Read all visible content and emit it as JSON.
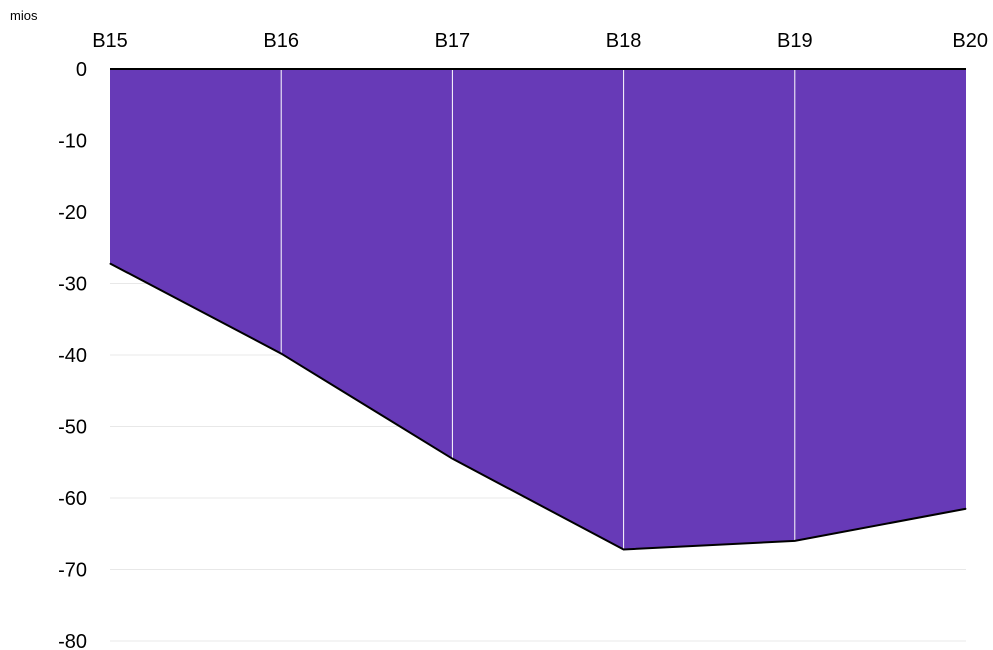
{
  "chart_data": {
    "type": "area",
    "title": "",
    "unit_label": "mios",
    "categories": [
      "B15",
      "B16",
      "B17",
      "B18",
      "B19",
      "B20"
    ],
    "values": [
      -27.2,
      -39.8,
      -54.5,
      -67.2,
      -66.0,
      -61.5
    ],
    "ylim": [
      -80,
      0
    ],
    "yticks": [
      0,
      -10,
      -20,
      -30,
      -40,
      -50,
      -60,
      -70,
      -80
    ],
    "ytick_labels": [
      "0",
      "-10",
      "-20",
      "-30",
      "-40",
      "-50",
      "-60",
      "-70",
      "-80"
    ],
    "x_axis_position": "top",
    "grid": true,
    "colors": {
      "fill": "#673ab7",
      "line": "#000000",
      "grid": "#e8e8e8",
      "divider": "#ffffff"
    }
  }
}
